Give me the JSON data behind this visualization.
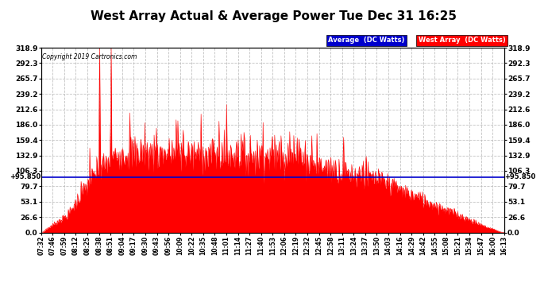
{
  "title": "West Array Actual & Average Power Tue Dec 31 16:25",
  "copyright": "Copyright 2019 Cartronics.com",
  "average_value": 95.85,
  "ymax": 318.9,
  "ymin": 0.0,
  "yticks": [
    0.0,
    26.6,
    53.1,
    79.7,
    106.3,
    132.9,
    159.4,
    186.0,
    212.6,
    239.2,
    265.7,
    292.3,
    318.9
  ],
  "xtick_labels": [
    "07:32",
    "07:46",
    "07:59",
    "08:12",
    "08:25",
    "08:38",
    "08:51",
    "09:04",
    "09:17",
    "09:30",
    "09:43",
    "09:56",
    "10:09",
    "10:22",
    "10:35",
    "10:48",
    "11:01",
    "11:14",
    "11:27",
    "11:40",
    "11:53",
    "12:06",
    "12:19",
    "12:32",
    "12:45",
    "12:58",
    "13:11",
    "13:24",
    "13:37",
    "13:50",
    "14:03",
    "14:16",
    "14:29",
    "14:42",
    "14:55",
    "15:08",
    "15:21",
    "15:34",
    "15:47",
    "16:00",
    "16:13"
  ],
  "background_color": "#ffffff",
  "grid_color": "#bbbbbb",
  "area_color": "#ff0000",
  "avg_line_color": "#0000cc",
  "title_fontsize": 11,
  "legend_avg_color": "#0000cc",
  "legend_west_color": "#ff0000",
  "legend_avg_label": "Average  (DC Watts)",
  "legend_west_label": "West Array  (DC Watts)",
  "avg_annotation": "+95.850"
}
